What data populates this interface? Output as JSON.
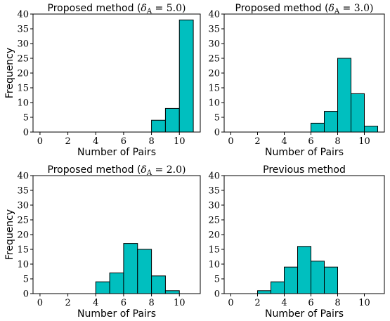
{
  "figure": {
    "bar_color": "#00bfbf",
    "edge_color": "#000000"
  },
  "chart_data": [
    {
      "type": "bar",
      "title_text": "Proposed method (",
      "title_math": "δ",
      "title_sub": "A",
      "title_value": " = 5.0)",
      "xlabel": "Number of Pairs",
      "ylabel": "Frequency",
      "bin_edges": [
        0,
        1,
        2,
        3,
        4,
        5,
        6,
        7,
        8,
        9,
        10,
        11
      ],
      "values": [
        0,
        0,
        0,
        0,
        0,
        0,
        0,
        0,
        4,
        8,
        38
      ],
      "xlim": [
        -0.5,
        11.5
      ],
      "ylim": [
        0,
        40
      ],
      "xticks": [
        "0",
        "2",
        "4",
        "6",
        "8",
        "10"
      ],
      "yticks": [
        "0",
        "5",
        "10",
        "15",
        "20",
        "25",
        "30",
        "35",
        "40"
      ],
      "grid": false
    },
    {
      "type": "bar",
      "title_text": "Proposed method (",
      "title_math": "δ",
      "title_sub": "A",
      "title_value": " = 3.0)",
      "xlabel": "Number of Pairs",
      "ylabel": "",
      "bin_edges": [
        0,
        1,
        2,
        3,
        4,
        5,
        6,
        7,
        8,
        9,
        10,
        11
      ],
      "values": [
        0,
        0,
        0,
        0,
        0,
        0,
        3,
        7,
        25,
        13,
        2
      ],
      "xlim": [
        -0.5,
        11.5
      ],
      "ylim": [
        0,
        40
      ],
      "xticks": [
        "0",
        "2",
        "4",
        "6",
        "8",
        "10"
      ],
      "yticks": [
        "0",
        "5",
        "10",
        "15",
        "20",
        "25",
        "30",
        "35",
        "40"
      ],
      "grid": false
    },
    {
      "type": "bar",
      "title_text": "Proposed method (",
      "title_math": "δ",
      "title_sub": "A",
      "title_value": " = 2.0)",
      "xlabel": "Number of Pairs",
      "ylabel": "Frequency",
      "bin_edges": [
        0,
        1,
        2,
        3,
        4,
        5,
        6,
        7,
        8,
        9,
        10,
        11
      ],
      "values": [
        0,
        0,
        0,
        0,
        4,
        7,
        17,
        15,
        6,
        1,
        0
      ],
      "xlim": [
        -0.5,
        11.5
      ],
      "ylim": [
        0,
        40
      ],
      "xticks": [
        "0",
        "2",
        "4",
        "6",
        "8",
        "10"
      ],
      "yticks": [
        "0",
        "5",
        "10",
        "15",
        "20",
        "25",
        "30",
        "35",
        "40"
      ],
      "grid": false
    },
    {
      "type": "bar",
      "title_text": "Previous method",
      "title_math": "",
      "title_sub": "",
      "title_value": "",
      "xlabel": "Number of Pairs",
      "ylabel": "",
      "bin_edges": [
        0,
        1,
        2,
        3,
        4,
        5,
        6,
        7,
        8,
        9,
        10,
        11
      ],
      "values": [
        0,
        0,
        1,
        4,
        9,
        16,
        11,
        9,
        0,
        0,
        0
      ],
      "xlim": [
        -0.5,
        11.5
      ],
      "ylim": [
        0,
        40
      ],
      "xticks": [
        "0",
        "2",
        "4",
        "6",
        "8",
        "10"
      ],
      "yticks": [
        "0",
        "5",
        "10",
        "15",
        "20",
        "25",
        "30",
        "35",
        "40"
      ],
      "grid": false
    }
  ]
}
